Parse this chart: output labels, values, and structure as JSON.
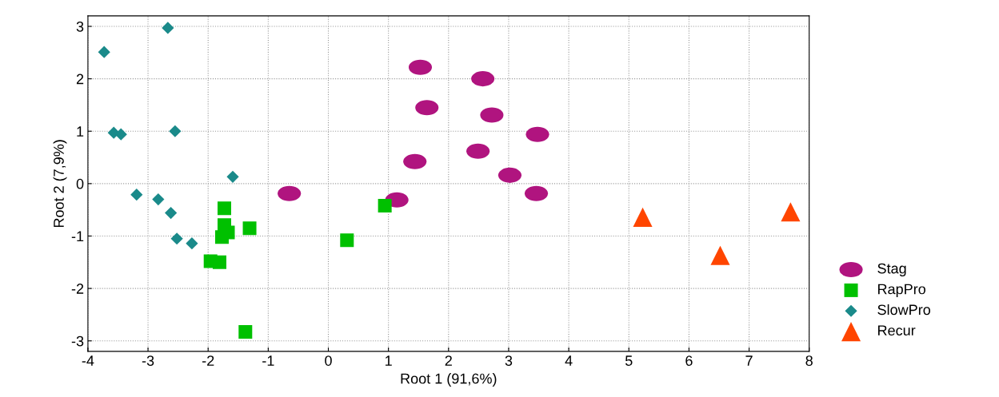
{
  "chart_data": {
    "type": "scatter",
    "xlabel": "Root 1 (91,6%)",
    "ylabel": "Root 2 (7,9%)",
    "xlim": [
      -4,
      8
    ],
    "xticks": [
      -4,
      -3,
      -2,
      -1,
      0,
      1,
      2,
      3,
      4,
      5,
      6,
      7,
      8
    ],
    "ylim": [
      -3.2,
      3.2
    ],
    "yticks": [
      -3,
      -2,
      -1,
      0,
      1,
      2,
      3
    ],
    "grid": true,
    "legend": "bottom right",
    "series": [
      {
        "name": "Stag",
        "color": "#b0147f",
        "marker": "circle",
        "x": [
          1.53,
          2.57,
          1.64,
          2.72,
          3.48,
          2.49,
          1.44,
          3.02,
          -0.65,
          3.46,
          1.14
        ],
        "values": [
          2.22,
          2.0,
          1.45,
          1.31,
          0.94,
          0.62,
          0.42,
          0.16,
          -0.19,
          -0.19,
          -0.31
        ]
      },
      {
        "name": "RapPro",
        "color": "#00c000",
        "marker": "square",
        "x": [
          -1.73,
          -1.73,
          -1.67,
          -1.31,
          -1.77,
          0.94,
          0.31,
          -1.96,
          -1.81,
          -1.38
        ],
        "values": [
          -0.47,
          -0.79,
          -0.93,
          -0.85,
          -1.02,
          -0.42,
          -1.08,
          -1.48,
          -1.5,
          -2.83
        ]
      },
      {
        "name": "SlowPro",
        "color": "#1a8a8a",
        "marker": "diamond",
        "x": [
          -2.67,
          -3.73,
          -3.57,
          -3.45,
          -2.55,
          -1.59,
          -3.19,
          -2.83,
          -2.62,
          -2.52,
          -2.27
        ],
        "values": [
          2.97,
          2.51,
          0.97,
          0.94,
          1.0,
          0.13,
          -0.21,
          -0.3,
          -0.56,
          -1.05,
          -1.14
        ]
      },
      {
        "name": "Recur",
        "color": "#ff4500",
        "marker": "triangle",
        "x": [
          5.23,
          6.52,
          7.69
        ],
        "values": [
          -0.64,
          -1.37,
          -0.54
        ]
      }
    ]
  }
}
